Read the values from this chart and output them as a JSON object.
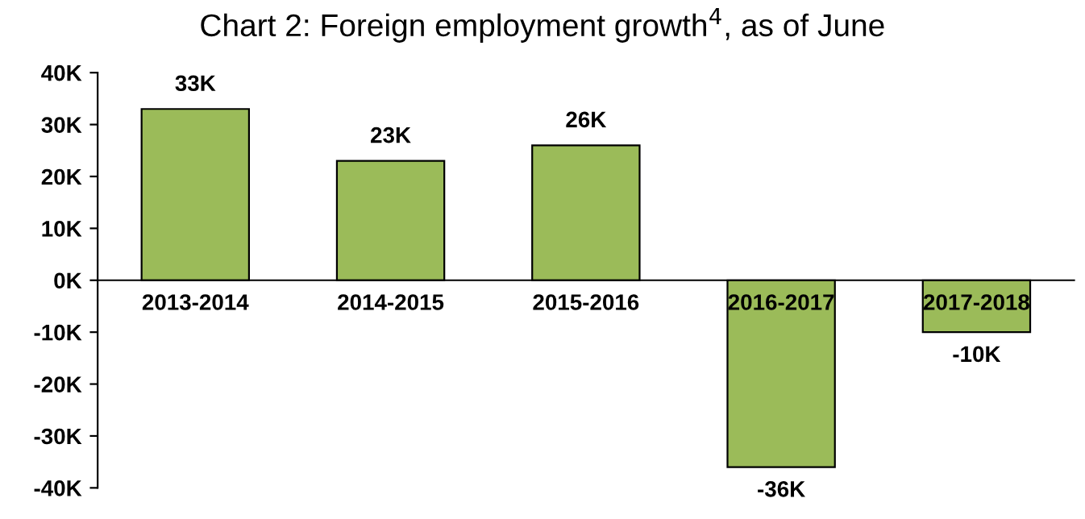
{
  "chart_data": {
    "type": "bar",
    "title": "Chart 2: Foreign employment growth$^{4}$, as of June",
    "categories": [
      "2013-2014",
      "2014-2015",
      "2015-2016",
      "2016-2017",
      "2017-2018"
    ],
    "values": [
      33,
      23,
      26,
      -36,
      -10
    ],
    "color": "#9bbb59",
    "value_labels": [
      "33K",
      "23K",
      "26K",
      "-36K",
      "-10K"
    ],
    "ylim": [
      -40,
      40
    ],
    "yticks": [
      {
        "value": -40,
        "label": "-40K"
      },
      {
        "value": -30,
        "label": "-30K"
      },
      {
        "value": -20,
        "label": "-20K"
      },
      {
        "value": -10,
        "label": "-10K"
      },
      {
        "value": 0,
        "label": "0K"
      },
      {
        "value": 10,
        "label": "10K"
      },
      {
        "value": 20,
        "label": "20K"
      },
      {
        "value": 30,
        "label": "30K"
      },
      {
        "value": 40,
        "label": "40K"
      }
    ],
    "grid": false,
    "legend": false
  }
}
